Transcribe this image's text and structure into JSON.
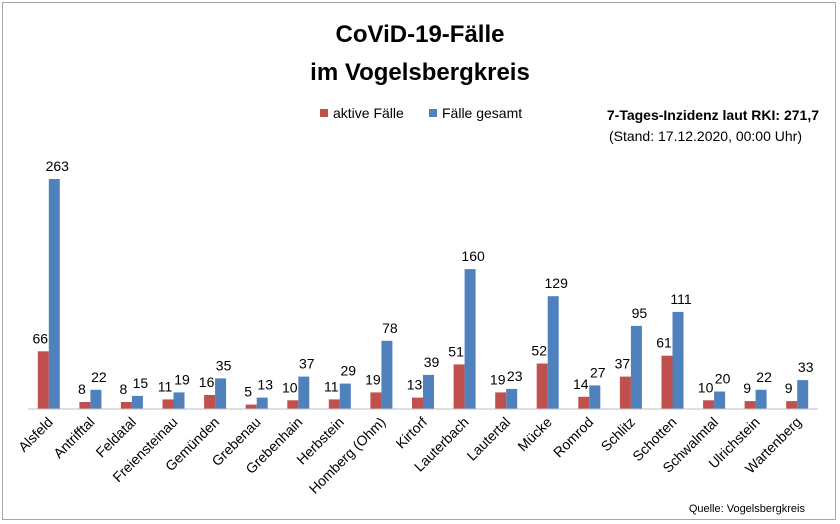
{
  "chart_data": {
    "type": "bar",
    "title_lines": [
      "CoViD-19-Fälle",
      "im Vogelsbergkreis"
    ],
    "categories": [
      "Alsfeld",
      "Antrifftal",
      "Feldatal",
      "Freiensteinau",
      "Gemünden",
      "Grebenau",
      "Grebenhain",
      "Herbstein",
      "Homberg (Ohm)",
      "Kirtorf",
      "Lauterbach",
      "Lautertal",
      "Mücke",
      "Romrod",
      "Schlitz",
      "Schotten",
      "Schwalmtal",
      "Ulrichstein",
      "Wartenberg"
    ],
    "series": [
      {
        "name": "aktive Fälle",
        "color": "#c0504d",
        "values": [
          66,
          8,
          8,
          11,
          16,
          5,
          10,
          11,
          19,
          13,
          51,
          19,
          52,
          14,
          37,
          61,
          10,
          9,
          9
        ]
      },
      {
        "name": "Fälle gesamt",
        "color": "#4f81bd",
        "values": [
          263,
          22,
          15,
          19,
          35,
          13,
          37,
          29,
          78,
          39,
          160,
          23,
          129,
          27,
          95,
          111,
          20,
          22,
          33
        ]
      }
    ],
    "ylim": [
      0,
      280
    ],
    "grid": false,
    "legend_position": "top-right",
    "annotation": {
      "incidence": "7-Tages-Inzidenz laut RKI: 271,7",
      "stand": "(Stand: 17.12.2020, 00:00 Uhr)"
    },
    "source": "Quelle: Vogelsbergkreis"
  }
}
